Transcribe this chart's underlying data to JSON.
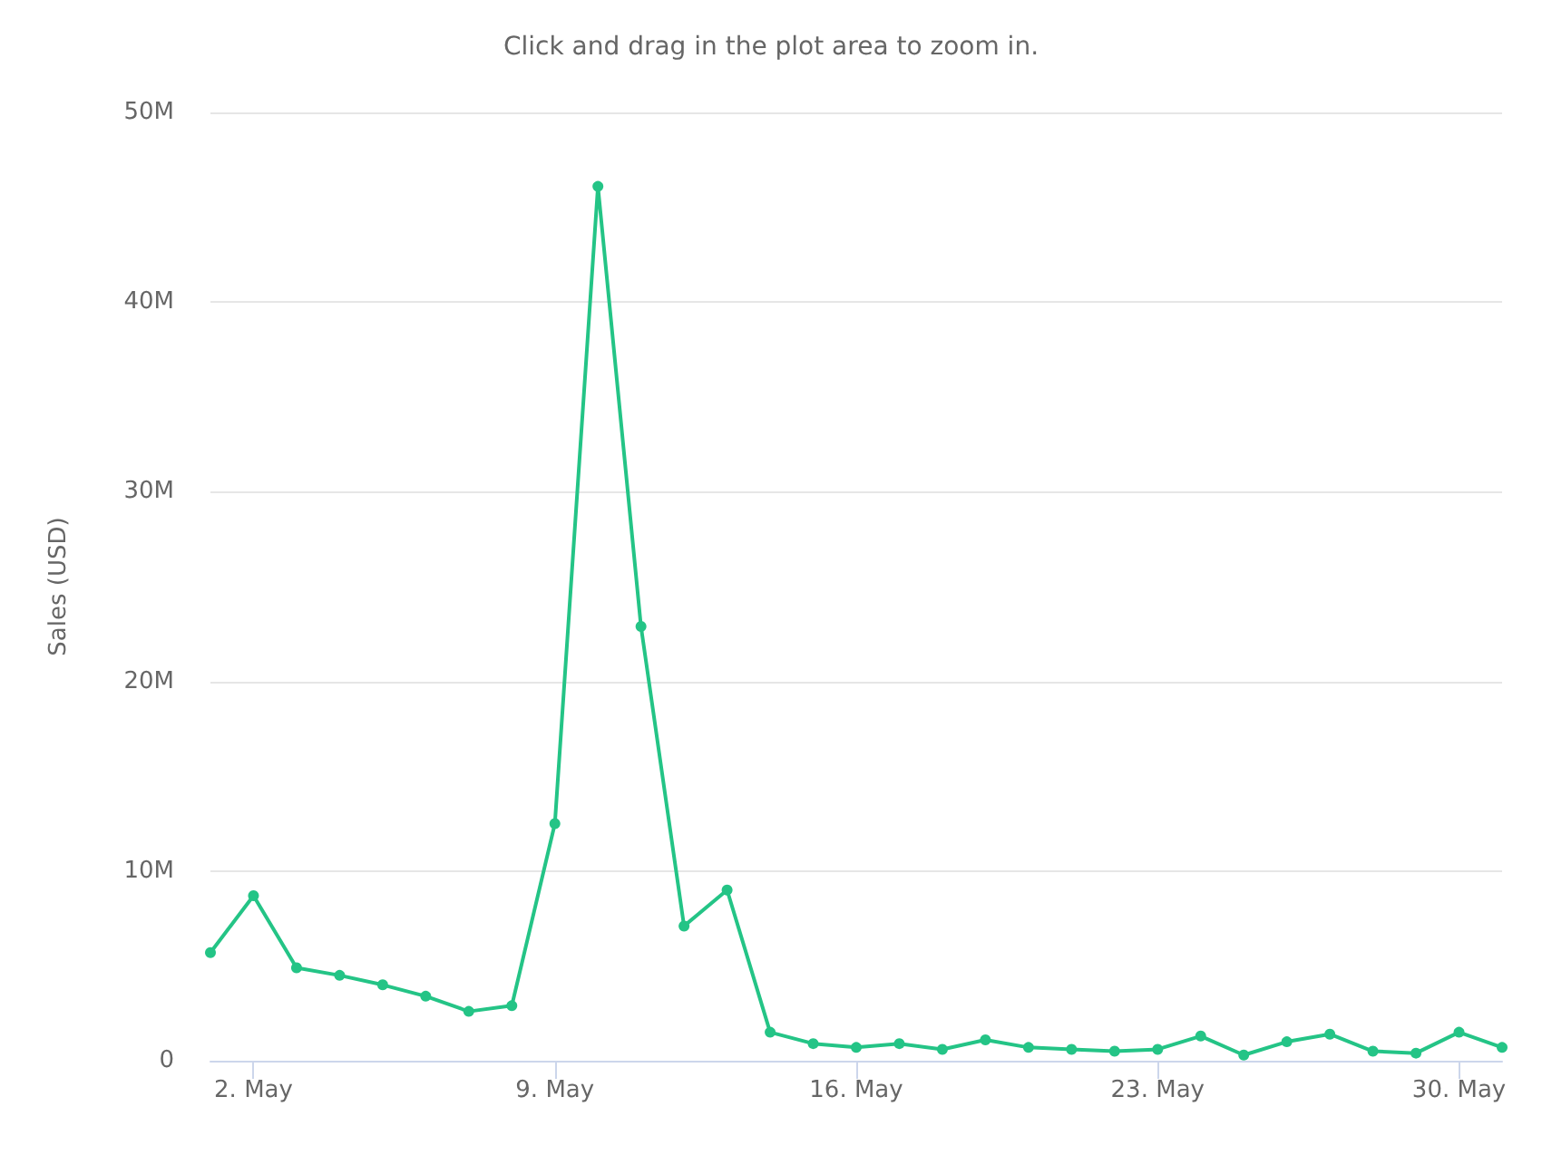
{
  "chart_data": {
    "type": "line",
    "subtitle": "Click and drag in the plot area to zoom in.",
    "ylabel": "Sales (USD)",
    "x": [
      "--05-01",
      "--05-02",
      "--05-03",
      "--05-04",
      "--05-05",
      "--05-06",
      "--05-07",
      "--05-08",
      "--05-09",
      "--05-10",
      "--05-11",
      "--05-12",
      "--05-13",
      "--05-14",
      "--05-15",
      "--05-16",
      "--05-17",
      "--05-18",
      "--05-19",
      "--05-20",
      "--05-21",
      "--05-22",
      "--05-23",
      "--05-24",
      "--05-25",
      "--05-26",
      "--05-27",
      "--05-28",
      "--05-29",
      "--05-30",
      "--05-31"
    ],
    "series": [
      {
        "color": "#24c486",
        "values": [
          5700000,
          8700000,
          4900000,
          4500000,
          4000000,
          3400000,
          2600000,
          2900000,
          12500000,
          46100000,
          22900000,
          7100000,
          9000000,
          1500000,
          900000,
          700000,
          900000,
          600000,
          1100000,
          700000,
          600000,
          500000,
          600000,
          1300000,
          300000,
          1000000,
          1400000,
          500000,
          400000,
          1500000,
          700000
        ]
      }
    ],
    "xlim": [
      "--05-01",
      "--05-31"
    ],
    "xticks": [
      {
        "value": "--05-02",
        "label": "2. May"
      },
      {
        "value": "--05-09",
        "label": "9. May"
      },
      {
        "value": "--05-16",
        "label": "16. May"
      },
      {
        "value": "--05-23",
        "label": "23. May"
      },
      {
        "value": "--05-30",
        "label": "30. May"
      }
    ],
    "ylim": [
      0,
      50000000
    ],
    "yticks": [
      0,
      {
        "value": 10000000,
        "label": "10M"
      },
      {
        "value": 20000000,
        "label": "20M"
      },
      {
        "value": 30000000,
        "label": "30M"
      },
      {
        "value": 40000000,
        "label": "40M"
      },
      {
        "value": 50000000,
        "label": "50M"
      }
    ],
    "grid": "y",
    "marker": "circle",
    "line_style": "solid"
  }
}
